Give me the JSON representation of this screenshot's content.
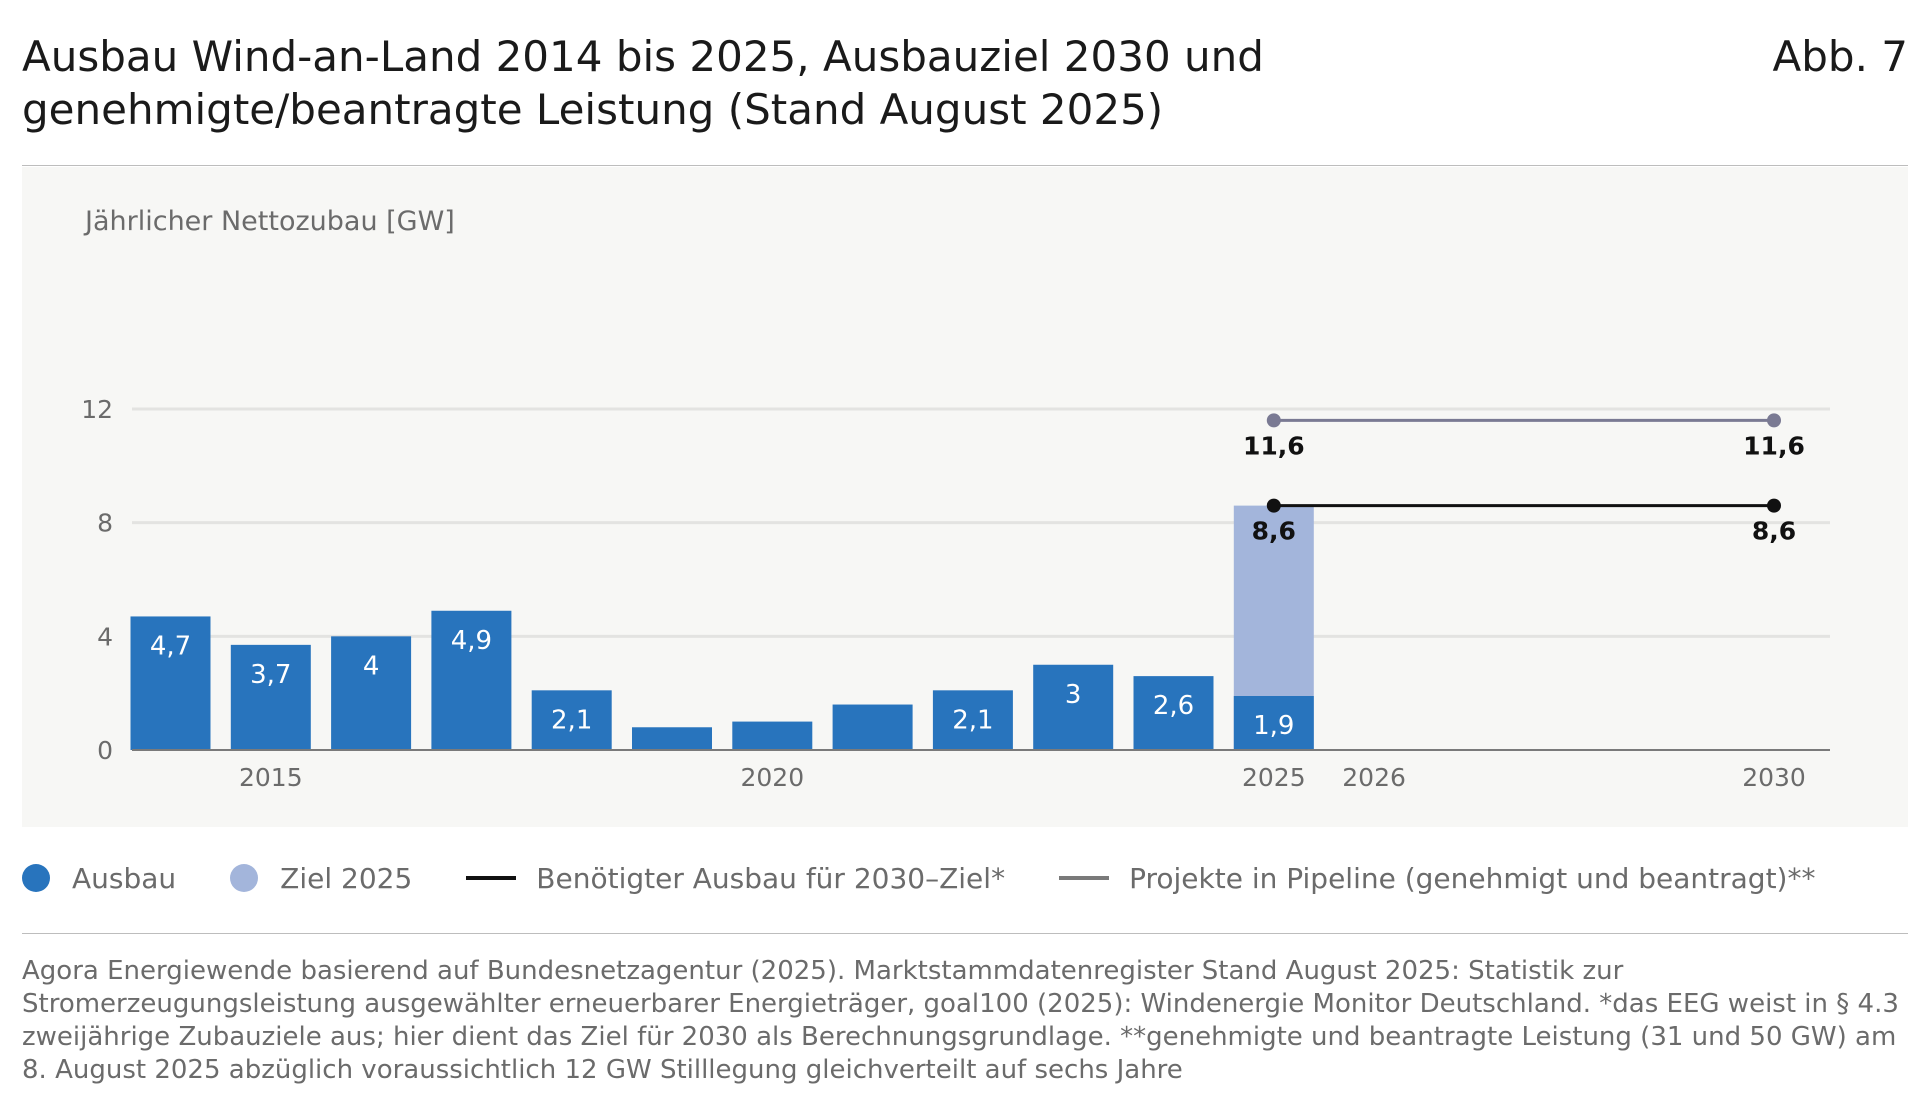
{
  "header": {
    "title_line1": "Ausbau Wind-an-Land 2014 bis 2025, Ausbauziel 2030 und",
    "title_line2": "genehmigte/beantragte Leistung (Stand August 2025)",
    "figure_number": "Abb. 7"
  },
  "colors": {
    "ausbau": "#2874bd",
    "ziel": "#a3b5db",
    "benoetigt": "#111111",
    "pipeline": "#7a7a93",
    "grid": "#e3e3e1",
    "axis": "#7a7a7a"
  },
  "chart_data": {
    "type": "bar",
    "ylabel": "Jährlicher Nettozubau [GW]",
    "ylim": [
      0,
      12
    ],
    "yticks": [
      0,
      4,
      8,
      12
    ],
    "grid": true,
    "legend_position": "bottom",
    "x_categories": [
      2014,
      2015,
      2016,
      2017,
      2018,
      2019,
      2020,
      2021,
      2022,
      2023,
      2024,
      2025,
      2026,
      2030
    ],
    "x_tick_labels": [
      {
        "x": 2015,
        "label": "2015"
      },
      {
        "x": 2020,
        "label": "2020"
      },
      {
        "x": 2025,
        "label": "2025"
      },
      {
        "x": 2026,
        "label": "2026"
      },
      {
        "x": 2030,
        "label": "2030"
      }
    ],
    "series": [
      {
        "name": "Ausbau",
        "type": "bar",
        "x": [
          2014,
          2015,
          2016,
          2017,
          2018,
          2019,
          2020,
          2021,
          2022,
          2023,
          2024,
          2025
        ],
        "values": [
          4.7,
          3.7,
          4.0,
          4.9,
          2.1,
          0.8,
          1.0,
          1.6,
          2.1,
          3.0,
          2.6,
          1.9
        ],
        "labels": [
          "4,7",
          "3,7",
          "4",
          "4,9",
          "2,1",
          "",
          "",
          "",
          "2,1",
          "3",
          "2,6",
          "1,9"
        ]
      },
      {
        "name": "Ziel 2025",
        "type": "bar",
        "x": [
          2025
        ],
        "values": [
          8.6
        ],
        "labels": [
          ""
        ]
      },
      {
        "name": "Benötigter Ausbau für 2030–Ziel*",
        "type": "line",
        "x": [
          2025,
          2030
        ],
        "values": [
          8.6,
          8.6
        ],
        "labels": [
          "8,6",
          "8,6"
        ]
      },
      {
        "name": "Projekte in Pipeline (genehmigt und beantragt)**",
        "type": "line",
        "x": [
          2025,
          2030
        ],
        "values": [
          11.6,
          11.6
        ],
        "labels": [
          "11,6",
          "11,6"
        ]
      }
    ]
  },
  "legend": [
    {
      "label": "Ausbau",
      "kind": "dot",
      "color": "#2874bd"
    },
    {
      "label": "Ziel 2025",
      "kind": "dot",
      "color": "#a3b5db"
    },
    {
      "label": "Benötigter Ausbau für 2030–Ziel*",
      "kind": "line",
      "color": "#111111"
    },
    {
      "label": "Projekte in Pipeline (genehmigt und beantragt)**",
      "kind": "line",
      "color": "#7a7a7a"
    }
  ],
  "source": {
    "text": "Agora Energiewende basierend auf Bundesnetzagentur (2025). Marktstammdatenregister Stand August 2025: Statistik zur Stromerzeugungsleistung ausgewählter erneuerbarer Energieträger, goal100 (2025): Windenergie Monitor Deutschland. *das EEG weist in § 4.3 zweijährige Zubauziele aus; hier dient das Ziel für 2030 als Berechnungsgrundlage. **genehmigte und beantragte Leistung (31 und 50 GW) am 8. August 2025 abzüglich voraussichtlich 12 GW Stilllegung gleichverteilt auf sechs Jahre"
  }
}
